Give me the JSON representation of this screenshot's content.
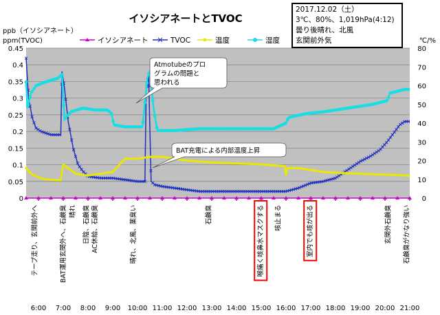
{
  "chart_data": {
    "type": "line",
    "title": "イソシアネートとTVOC",
    "info_box": [
      "2017.12.02（土）",
      "3℃、80%、1,019hPa(4:12)",
      "曇り後晴れ、北風",
      "玄関前外気"
    ],
    "left_axis": {
      "label_lines": [
        "ppb（イソシアネート）",
        "ppm(TVOC)"
      ],
      "range": [
        0,
        0.45
      ],
      "ticks": [
        "0",
        "0.05",
        "0.1",
        "0.15",
        "0.2",
        "0.25",
        "0.3",
        "0.35",
        "0.4",
        "0.45"
      ]
    },
    "right_axis": {
      "label": "℃/%",
      "range": [
        0,
        80
      ],
      "ticks": [
        "0",
        "10",
        "20",
        "30",
        "40",
        "50",
        "60",
        "70",
        "80"
      ]
    },
    "x_axis": {
      "range": [
        5.5,
        21.0
      ],
      "ticks": [
        "6:00",
        "7:00",
        "8:00",
        "9:00",
        "10:00",
        "11:00",
        "12:00",
        "13:00",
        "14:00",
        "15:00",
        "16:00",
        "17:00",
        "18:00",
        "19:00",
        "20:00",
        "21:00"
      ],
      "tick_hours": [
        6,
        7,
        8,
        9,
        10,
        11,
        12,
        13,
        14,
        15,
        16,
        17,
        18,
        19,
        20,
        21
      ]
    },
    "legend": {
      "placement": "top",
      "entries": [
        "イソシアネート",
        "TVOC",
        "温度",
        "湿度"
      ]
    },
    "colors": {
      "isocyanate": "#cc00cc",
      "tvoc": "#1f2fbf",
      "temperature": "#e8e800",
      "humidity": "#19dde0",
      "plot_bg": "#c0c0c0",
      "highlight": "#ff0000"
    },
    "series": [
      {
        "name": "イソシアネート",
        "axis": "left",
        "points": [
          [
            5.5,
            0
          ],
          [
            21.0,
            0
          ]
        ]
      },
      {
        "name": "TVOC",
        "axis": "left",
        "points": [
          [
            5.5,
            0.42
          ],
          [
            5.6,
            0.3
          ],
          [
            5.75,
            0.24
          ],
          [
            5.9,
            0.21
          ],
          [
            6.1,
            0.2
          ],
          [
            6.5,
            0.19
          ],
          [
            6.9,
            0.19
          ],
          [
            6.95,
            0.38
          ],
          [
            7.05,
            0.33
          ],
          [
            7.2,
            0.23
          ],
          [
            7.4,
            0.15
          ],
          [
            7.6,
            0.1
          ],
          [
            7.8,
            0.08
          ],
          [
            8.0,
            0.065
          ],
          [
            8.5,
            0.06
          ],
          [
            9.0,
            0.06
          ],
          [
            9.5,
            0.055
          ],
          [
            10.0,
            0.05
          ],
          [
            10.3,
            0.05
          ],
          [
            10.35,
            0.32
          ],
          [
            10.45,
            0.37
          ],
          [
            10.55,
            0.05
          ],
          [
            10.7,
            0.04
          ],
          [
            11.0,
            0.035
          ],
          [
            11.5,
            0.03
          ],
          [
            12.0,
            0.025
          ],
          [
            12.5,
            0.02
          ],
          [
            13.0,
            0.02
          ],
          [
            14.0,
            0.02
          ],
          [
            15.0,
            0.02
          ],
          [
            16.0,
            0.02
          ],
          [
            16.5,
            0.03
          ],
          [
            17.0,
            0.045
          ],
          [
            17.5,
            0.05
          ],
          [
            18.0,
            0.06
          ],
          [
            18.3,
            0.075
          ],
          [
            18.6,
            0.09
          ],
          [
            19.0,
            0.11
          ],
          [
            19.4,
            0.125
          ],
          [
            19.8,
            0.145
          ],
          [
            20.1,
            0.17
          ],
          [
            20.4,
            0.2
          ],
          [
            20.6,
            0.22
          ],
          [
            20.8,
            0.23
          ],
          [
            21.0,
            0.23
          ]
        ]
      },
      {
        "name": "温度",
        "axis": "right",
        "points": [
          [
            5.5,
            16
          ],
          [
            5.7,
            13
          ],
          [
            6.0,
            11
          ],
          [
            6.3,
            10
          ],
          [
            6.9,
            9.5
          ],
          [
            7.0,
            18
          ],
          [
            7.2,
            16
          ],
          [
            7.5,
            13
          ],
          [
            8.0,
            12
          ],
          [
            8.5,
            13
          ],
          [
            9.0,
            14
          ],
          [
            9.5,
            21
          ],
          [
            10.0,
            21
          ],
          [
            10.5,
            22
          ],
          [
            11.0,
            22
          ],
          [
            11.5,
            21
          ],
          [
            12.0,
            20
          ],
          [
            13.0,
            19
          ],
          [
            14.0,
            18.5
          ],
          [
            15.0,
            18
          ],
          [
            15.95,
            17
          ],
          [
            16.0,
            12
          ],
          [
            16.05,
            16
          ],
          [
            16.5,
            16
          ],
          [
            17.0,
            15
          ],
          [
            17.5,
            14
          ],
          [
            18.0,
            13.5
          ],
          [
            19.0,
            13
          ],
          [
            20.0,
            12.5
          ],
          [
            21.0,
            12
          ]
        ]
      },
      {
        "name": "湿度",
        "axis": "right",
        "points": [
          [
            5.5,
            62
          ],
          [
            5.55,
            48
          ],
          [
            5.7,
            56
          ],
          [
            5.9,
            60
          ],
          [
            6.3,
            62
          ],
          [
            6.8,
            64
          ],
          [
            6.95,
            66
          ],
          [
            7.05,
            42
          ],
          [
            7.3,
            46
          ],
          [
            7.8,
            48
          ],
          [
            8.3,
            47
          ],
          [
            8.8,
            47
          ],
          [
            8.95,
            45
          ],
          [
            9.05,
            39
          ],
          [
            9.5,
            38
          ],
          [
            10.2,
            38
          ],
          [
            10.4,
            64
          ],
          [
            10.5,
            68
          ],
          [
            10.65,
            48
          ],
          [
            10.8,
            36
          ],
          [
            11.5,
            36
          ],
          [
            12.5,
            37
          ],
          [
            13.5,
            37
          ],
          [
            14.5,
            37
          ],
          [
            15.5,
            37
          ],
          [
            16.0,
            40
          ],
          [
            16.1,
            43
          ],
          [
            16.8,
            45
          ],
          [
            17.5,
            46
          ],
          [
            18.5,
            48
          ],
          [
            19.5,
            50
          ],
          [
            20.1,
            52
          ],
          [
            20.2,
            56
          ],
          [
            20.8,
            58
          ],
          [
            21.0,
            58
          ]
        ]
      }
    ],
    "bubbles": [
      "Atmotubeのプロ|グラムの問題と|思われる",
      "BAT充電による内部温度上昇"
    ],
    "event_labels": [
      {
        "hour": 5.82,
        "text": "テープ走り、玄関前外へ",
        "boxed": false
      },
      {
        "hour": 6.97,
        "text": "BAT運用玄関外へ、石鹸臭",
        "boxed": false
      },
      {
        "hour": 7.35,
        "text": "晴れ",
        "boxed": false
      },
      {
        "hour": 7.9,
        "text": "日陰、石鹸臭",
        "boxed": false
      },
      {
        "hour": 8.25,
        "text": "AC休給、石鹸臭",
        "boxed": false
      },
      {
        "hour": 9.8,
        "text": "晴れ、北風、薬臭い",
        "boxed": false
      },
      {
        "hour": 12.85,
        "text": "石鹸臭",
        "boxed": false
      },
      {
        "hour": 14.95,
        "text": "喉痛く咳鼻水マスクする",
        "boxed": true
      },
      {
        "hour": 15.65,
        "text": "咳止まる",
        "boxed": false
      },
      {
        "hour": 16.95,
        "text": "室内でも咳が出る",
        "boxed": true
      },
      {
        "hour": 20.1,
        "text": "玄関外石鹸臭",
        "boxed": false
      },
      {
        "hour": 20.85,
        "text": "石鹸臭がかなり強い",
        "boxed": false
      }
    ]
  }
}
